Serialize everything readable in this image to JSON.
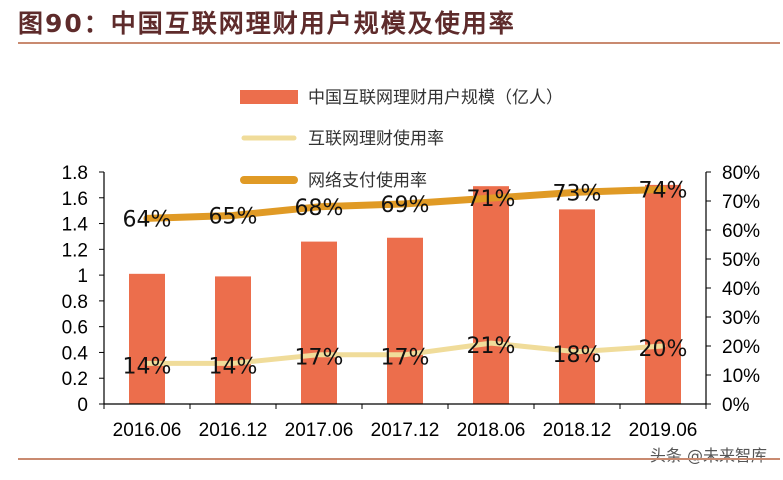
{
  "title": "图90：中国互联网理财用户规模及使用率",
  "watermark": "头条 @未来智库",
  "chart_data": {
    "type": "bar+line",
    "title": "",
    "categories": [
      "2016.06",
      "2016.12",
      "2017.06",
      "2017.12",
      "2018.06",
      "2018.12",
      "2019.06"
    ],
    "series": [
      {
        "name": "中国互联网理财用户规模（亿人）",
        "type": "bar",
        "axis": "left",
        "color": "#ec6e4c",
        "values": [
          1.01,
          0.99,
          1.26,
          1.29,
          1.69,
          1.51,
          1.7
        ]
      },
      {
        "name": "互联网理财使用率",
        "type": "line",
        "axis": "right",
        "color": "#f0dc9a",
        "values": [
          14,
          14,
          17,
          17,
          21,
          18,
          20
        ],
        "labels": [
          "14%",
          "14%",
          "17%",
          "17%",
          "21%",
          "18%",
          "20%"
        ]
      },
      {
        "name": "网络支付使用率",
        "type": "line",
        "axis": "right",
        "color": "#e09a25",
        "values": [
          64,
          65,
          68,
          69,
          71,
          73,
          74
        ],
        "labels": [
          "64%",
          "65%",
          "68%",
          "69%",
          "71%",
          "73%",
          "74%"
        ]
      }
    ],
    "y_left": {
      "range": [
        0,
        1.8
      ],
      "ticks": [
        "0",
        "0.2",
        "0.4",
        "0.6",
        "0.8",
        "1",
        "1.2",
        "1.4",
        "1.6",
        "1.8"
      ]
    },
    "y_right": {
      "range": [
        0,
        80
      ],
      "ticks": [
        "0%",
        "10%",
        "20%",
        "30%",
        "40%",
        "50%",
        "60%",
        "70%",
        "80%"
      ]
    },
    "grid": false,
    "legend": "top-center"
  }
}
